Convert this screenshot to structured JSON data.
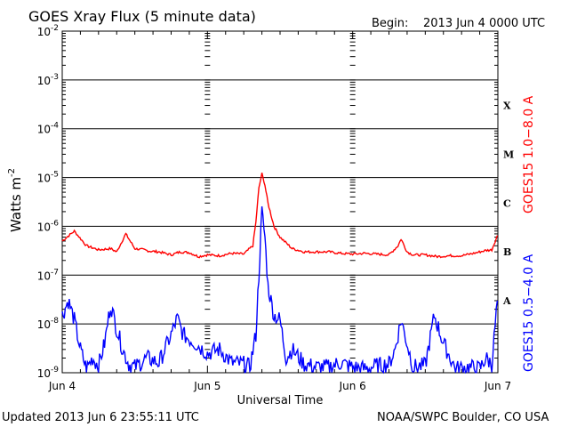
{
  "header": {
    "title": "GOES Xray Flux (5 minute data)",
    "begin_label": "Begin:",
    "begin_value": "2013 Jun 4 0000 UTC"
  },
  "footer": {
    "updated": "Updated 2013 Jun  6 23:55:11 UTC",
    "source": "NOAA/SWPC Boulder, CO USA"
  },
  "chart_data": {
    "type": "line",
    "title": "GOES Xray Flux (5 minute data)",
    "xlabel": "Universal Time",
    "ylabel": "Watts m",
    "ylabel_sup": "-2",
    "yscale": "log",
    "ylim": [
      1e-09,
      0.01
    ],
    "xlim": [
      "2013-06-04T00:00",
      "2013-06-07T00:00"
    ],
    "x_ticks": [
      "Jun 4",
      "Jun 5",
      "Jun 6",
      "Jun 7"
    ],
    "y_ticks": [
      {
        "base": "10",
        "exp": "-9"
      },
      {
        "base": "10",
        "exp": "-8"
      },
      {
        "base": "10",
        "exp": "-7"
      },
      {
        "base": "10",
        "exp": "-6"
      },
      {
        "base": "10",
        "exp": "-5"
      },
      {
        "base": "10",
        "exp": "-4"
      },
      {
        "base": "10",
        "exp": "-3"
      },
      {
        "base": "10",
        "exp": "-2"
      }
    ],
    "flare_classes": [
      "A",
      "B",
      "C",
      "M",
      "X"
    ],
    "grid": "horizontal at each decade",
    "series": [
      {
        "name": "GOES15 1.0−8.0 A",
        "color": "#ff0000",
        "x": [
          "2013-06-04T00:00",
          "2013-06-04T02:00",
          "2013-06-04T04:00",
          "2013-06-04T06:00",
          "2013-06-04T08:00",
          "2013-06-04T09:00",
          "2013-06-04T10:30",
          "2013-06-04T12:00",
          "2013-06-04T13:30",
          "2013-06-04T14:30",
          "2013-06-04T16:00",
          "2013-06-04T18:00",
          "2013-06-04T19:30",
          "2013-06-04T21:00",
          "2013-06-04T22:30",
          "2013-06-05T00:00",
          "2013-06-05T02:00",
          "2013-06-05T04:00",
          "2013-06-05T06:00",
          "2013-06-05T07:30",
          "2013-06-05T08:00",
          "2013-06-05T08:30",
          "2013-06-05T09:00",
          "2013-06-05T09:30",
          "2013-06-05T10:00",
          "2013-06-05T11:00",
          "2013-06-05T12:00",
          "2013-06-05T14:00",
          "2013-06-05T16:00",
          "2013-06-05T18:00",
          "2013-06-05T20:00",
          "2013-06-05T22:00",
          "2013-06-06T00:00",
          "2013-06-06T02:00",
          "2013-06-06T04:00",
          "2013-06-06T06:00",
          "2013-06-06T07:30",
          "2013-06-06T08:00",
          "2013-06-06T09:00",
          "2013-06-06T10:00",
          "2013-06-06T12:00",
          "2013-06-06T14:00",
          "2013-06-06T16:00",
          "2013-06-06T18:00",
          "2013-06-06T20:00",
          "2013-06-06T22:00",
          "2013-06-06T23:00",
          "2013-06-06T23:55"
        ],
        "y": [
          5e-07,
          8e-07,
          4e-07,
          3.3e-07,
          3.5e-07,
          3e-07,
          7e-07,
          3.5e-07,
          3.3e-07,
          3.1e-07,
          3e-07,
          2.6e-07,
          3e-07,
          2.9e-07,
          2.4e-07,
          2.6e-07,
          2.5e-07,
          2.8e-07,
          2.7e-07,
          4e-07,
          1.2e-06,
          6e-06,
          1.2e-05,
          7e-06,
          3e-06,
          1e-06,
          6e-07,
          3.5e-07,
          3e-07,
          3e-07,
          3e-07,
          2.8e-07,
          2.7e-07,
          2.8e-07,
          2.7e-07,
          2.6e-07,
          4e-07,
          5.5e-07,
          3e-07,
          2.6e-07,
          2.6e-07,
          2.4e-07,
          2.5e-07,
          2.5e-07,
          2.8e-07,
          3.2e-07,
          3.3e-07,
          6.5e-07
        ]
      },
      {
        "name": "GOES15 0.5−4.0 A",
        "color": "#0000ff",
        "x": [
          "2013-06-04T00:00",
          "2013-06-04T01:00",
          "2013-06-04T02:00",
          "2013-06-04T03:00",
          "2013-06-04T04:00",
          "2013-06-04T05:00",
          "2013-06-04T06:00",
          "2013-06-04T07:00",
          "2013-06-04T08:00",
          "2013-06-04T09:00",
          "2013-06-04T10:00",
          "2013-06-04T11:00",
          "2013-06-04T12:00",
          "2013-06-04T14:00",
          "2013-06-04T16:00",
          "2013-06-04T18:00",
          "2013-06-04T19:00",
          "2013-06-04T20:00",
          "2013-06-04T22:00",
          "2013-06-05T00:00",
          "2013-06-05T02:00",
          "2013-06-05T04:00",
          "2013-06-05T06:00",
          "2013-06-05T07:00",
          "2013-06-05T08:00",
          "2013-06-05T08:30",
          "2013-06-05T09:00",
          "2013-06-05T09:30",
          "2013-06-05T10:00",
          "2013-06-05T11:00",
          "2013-06-05T12:00",
          "2013-06-05T13:00",
          "2013-06-05T14:00",
          "2013-06-05T16:00",
          "2013-06-05T18:00",
          "2013-06-05T20:00",
          "2013-06-05T22:00",
          "2013-06-06T00:00",
          "2013-06-06T02:00",
          "2013-06-06T04:00",
          "2013-06-06T06:00",
          "2013-06-06T07:00",
          "2013-06-06T08:00",
          "2013-06-06T10:00",
          "2013-06-06T12:00",
          "2013-06-06T13:30",
          "2013-06-06T15:00",
          "2013-06-06T17:00",
          "2013-06-06T19:00",
          "2013-06-06T21:00",
          "2013-06-06T22:00",
          "2013-06-06T23:00",
          "2013-06-06T23:55"
        ],
        "y": [
          1.5e-08,
          3e-08,
          1.2e-08,
          3e-09,
          1.2e-09,
          2e-09,
          1.4e-09,
          4e-09,
          2.5e-08,
          8e-09,
          3e-09,
          1.5e-09,
          1.3e-09,
          2e-09,
          1.6e-09,
          6e-09,
          1.3e-08,
          6e-09,
          4e-09,
          2.5e-09,
          3e-09,
          1.6e-09,
          1.5e-09,
          1.3e-09,
          6e-09,
          1e-07,
          2e-06,
          6e-07,
          6e-08,
          1.5e-08,
          1.2e-08,
          2e-09,
          3e-09,
          1.5e-09,
          1.3e-09,
          1.3e-09,
          1.6e-09,
          1.3e-09,
          1.2e-09,
          1.4e-09,
          1.5e-09,
          3e-09,
          1.2e-08,
          1.3e-09,
          1.4e-09,
          1.5e-08,
          4e-09,
          1.2e-09,
          1.3e-09,
          1.2e-09,
          2e-09,
          1.5e-09,
          3e-08
        ]
      }
    ]
  }
}
